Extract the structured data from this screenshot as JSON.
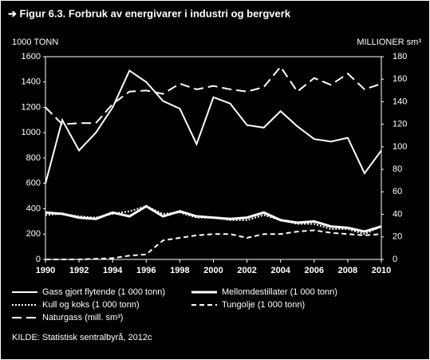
{
  "chart_data": {
    "type": "line",
    "title": "➔ Figur 6.3. Forbruk av energivarer i industri og bergverk",
    "ylabel": "1000 TONN",
    "y2label": "MILLIONER sm³",
    "source": "KILDE: Statistisk sentralbyrå, 2012c",
    "x": [
      1990,
      1991,
      1992,
      1993,
      1994,
      1995,
      1996,
      1997,
      1998,
      1999,
      2000,
      2001,
      2002,
      2003,
      2004,
      2005,
      2006,
      2007,
      2008,
      2009,
      2010
    ],
    "xlim": [
      1990,
      2010
    ],
    "xticks": [
      1990,
      1992,
      1994,
      1996,
      1998,
      2000,
      2002,
      2004,
      2006,
      2008,
      2010
    ],
    "ylim": [
      0,
      1600
    ],
    "yticks": [
      0,
      200,
      400,
      600,
      800,
      1000,
      1200,
      1400,
      1600
    ],
    "y2lim": [
      0,
      180
    ],
    "y2ticks": [
      0,
      20,
      40,
      60,
      80,
      100,
      120,
      140,
      160,
      180
    ],
    "series": [
      {
        "name": "Gass gjort flytende (1 000 tonn)",
        "color": "#ffffff",
        "style": "solid",
        "values": [
          600,
          1100,
          860,
          1000,
          1200,
          1490,
          1400,
          1250,
          1190,
          910,
          1280,
          1230,
          1060,
          1040,
          1170,
          1050,
          950,
          930,
          960,
          680,
          860
        ]
      },
      {
        "name": "Mellomdestillater (1 000 tonn)",
        "color": "#ffffff",
        "style": "thick",
        "values": [
          370,
          360,
          330,
          320,
          370,
          340,
          420,
          340,
          380,
          340,
          330,
          320,
          330,
          370,
          310,
          290,
          300,
          260,
          250,
          220,
          260
        ]
      },
      {
        "name": "Kull og koks (1 000 tonn)",
        "color": "#ffffff",
        "style": "dotted",
        "values": [
          350,
          360,
          340,
          330,
          360,
          380,
          420,
          360,
          370,
          330,
          330,
          310,
          310,
          350,
          310,
          280,
          280,
          240,
          240,
          200,
          260
        ]
      },
      {
        "name": "Tungolje (1 000 tonn)",
        "color": "#ffffff",
        "style": "dashed",
        "values": [
          0,
          0,
          0,
          5,
          10,
          30,
          40,
          150,
          170,
          190,
          200,
          200,
          170,
          200,
          200,
          220,
          230,
          210,
          200,
          190,
          200
        ]
      },
      {
        "name": "Naturgass (mill. sm³)",
        "color": "#ffffff",
        "style": "longdash",
        "axis": "y2",
        "values": [
          135,
          120,
          121,
          121,
          138,
          149,
          150,
          147,
          156,
          151,
          154,
          151,
          149,
          153,
          171,
          149,
          161,
          155,
          165,
          151,
          156
        ]
      }
    ]
  }
}
